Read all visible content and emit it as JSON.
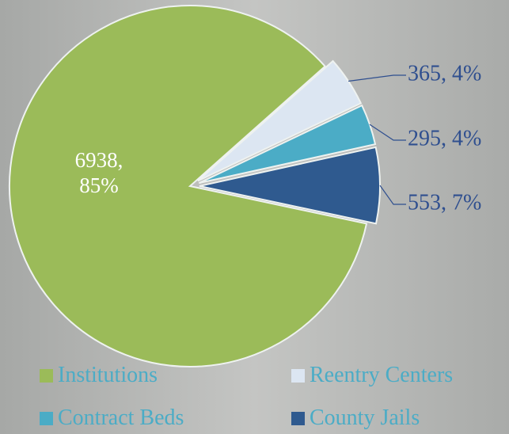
{
  "chart_data": {
    "type": "pie",
    "categories": [
      "Institutions",
      "Reentry Centers",
      "Contract Beds",
      "County Jails"
    ],
    "values": [
      6938,
      365,
      295,
      553
    ],
    "value_labels": [
      "6938, 85%",
      "365, 4%",
      "295, 4%",
      "553, 7%"
    ],
    "colors": [
      "#9bbb59",
      "#dce6f2",
      "#4bacc6",
      "#2f5a8f"
    ],
    "legend": "bottom"
  }
}
